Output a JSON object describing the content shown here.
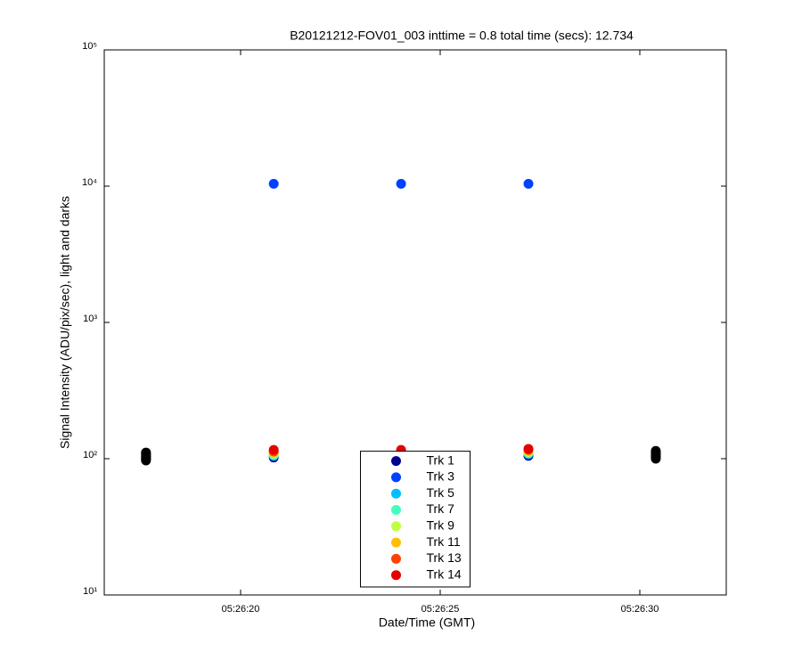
{
  "chart_data": {
    "type": "scatter",
    "title": "B20121212-FOV01_003 inttime = 0.8 total time (secs): 12.734",
    "xlabel": "Date/Time (GMT)",
    "ylabel": "Signal Intensity (ADU/pix/sec), light and darks",
    "xlim": [
      16.585,
      32.165
    ],
    "xticks": [
      {
        "value": 20,
        "label": "05:26:20"
      },
      {
        "value": 25,
        "label": "05:26:25"
      },
      {
        "value": 30,
        "label": "05:26:30"
      }
    ],
    "ylim": [
      10,
      100000
    ],
    "yscale": "log",
    "yticks": [
      {
        "value": 10,
        "label": "10¹"
      },
      {
        "value": 100,
        "label": "10²"
      },
      {
        "value": 1000,
        "label": "10³"
      },
      {
        "value": 10000,
        "label": "10⁴"
      },
      {
        "value": 100000,
        "label": "10⁵"
      }
    ],
    "grid": false,
    "legend": "lower center",
    "series": [
      {
        "color": "#000000",
        "x": [
          17.63,
          17.63,
          17.63,
          17.63,
          17.63,
          17.63,
          17.63,
          17.63,
          30.4,
          30.4,
          30.4,
          30.4,
          30.4,
          30.4,
          30.4,
          30.4
        ],
        "values": [
          97,
          99,
          101,
          103,
          105,
          107,
          109,
          111,
          100,
          102,
          104,
          106,
          108,
          110,
          112,
          114
        ]
      },
      {
        "name": "Trk 1",
        "color": "#00008f",
        "x": [
          20.83,
          24.02,
          27.21
        ],
        "values": [
          102,
          103,
          105
        ]
      },
      {
        "name": "Trk 3",
        "color": "#0040ff",
        "x": [
          20.83,
          24.02,
          27.21
        ],
        "values": [
          10400,
          10400,
          10400
        ]
      },
      {
        "name": "Trk 5",
        "color": "#00bfff",
        "x": [
          20.83,
          24.02,
          27.21
        ],
        "values": [
          105,
          106,
          108
        ]
      },
      {
        "name": "Trk 7",
        "color": "#40ffbf",
        "x": [
          20.83,
          24.02,
          27.21
        ],
        "values": [
          107,
          108,
          110
        ]
      },
      {
        "name": "Trk 9",
        "color": "#bfff40",
        "x": [
          20.83,
          24.02,
          27.21
        ],
        "values": [
          109,
          110,
          112
        ]
      },
      {
        "name": "Trk 11",
        "color": "#ffbf00",
        "x": [
          20.83,
          24.02,
          27.21
        ],
        "values": [
          111,
          112,
          114
        ]
      },
      {
        "name": "Trk 13",
        "color": "#ff4000",
        "x": [
          20.83,
          24.02,
          27.21
        ],
        "values": [
          113,
          114,
          116
        ]
      },
      {
        "name": "Trk 14",
        "color": "#e60000",
        "x": [
          20.83,
          24.02,
          27.21
        ],
        "values": [
          116,
          116,
          118
        ]
      }
    ]
  }
}
